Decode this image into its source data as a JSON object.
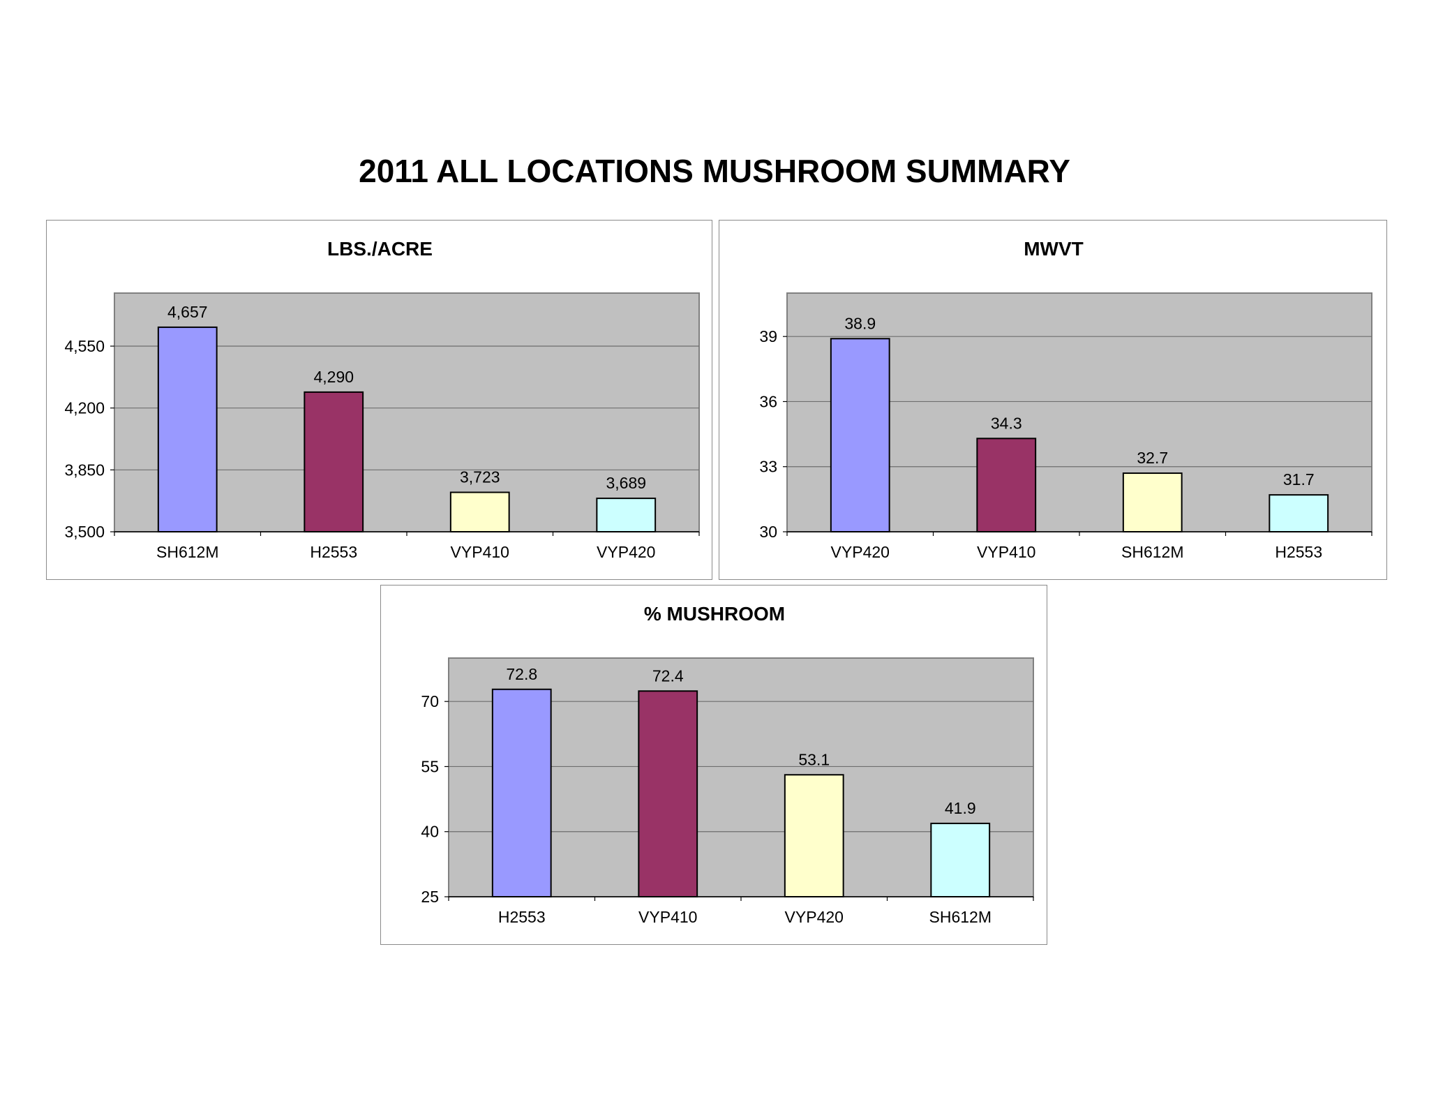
{
  "page": {
    "title": "2011 ALL LOCATIONS MUSHROOM SUMMARY"
  },
  "colors": {
    "plot_background": "#c0c0c0",
    "gridline": "#6e6e6e",
    "bar_outline": "#000000",
    "panel_border": "#8a8a8a"
  },
  "chart_data": [
    {
      "type": "bar",
      "title": "LBS./ACRE",
      "xlabel": "",
      "ylabel": "",
      "categories": [
        "SH612M",
        "H2553",
        "VYP410",
        "VYP420"
      ],
      "values": [
        4657,
        4290,
        3723,
        3689
      ],
      "value_labels": [
        "4,657",
        "4,290",
        "3,723",
        "3,689"
      ],
      "bar_colors": [
        "#9999ff",
        "#993366",
        "#ffffcc",
        "#ccffff"
      ],
      "ylim": [
        3500,
        4850
      ],
      "yticks": [
        3500,
        3850,
        4200,
        4550
      ],
      "ytick_labels": [
        "3,500",
        "3,850",
        "4,200",
        "4,550"
      ],
      "grid": true,
      "legend": "none"
    },
    {
      "type": "bar",
      "title": "MWVT",
      "xlabel": "",
      "ylabel": "",
      "categories": [
        "VYP420",
        "VYP410",
        "SH612M",
        "H2553"
      ],
      "values": [
        38.9,
        34.3,
        32.7,
        31.7
      ],
      "value_labels": [
        "38.9",
        "34.3",
        "32.7",
        "31.7"
      ],
      "bar_colors": [
        "#9999ff",
        "#993366",
        "#ffffcc",
        "#ccffff"
      ],
      "ylim": [
        30,
        41
      ],
      "yticks": [
        30,
        33,
        36,
        39
      ],
      "ytick_labels": [
        "30",
        "33",
        "36",
        "39"
      ],
      "grid": true,
      "legend": "none"
    },
    {
      "type": "bar",
      "title": "% MUSHROOM",
      "xlabel": "",
      "ylabel": "",
      "categories": [
        "H2553",
        "VYP410",
        "VYP420",
        "SH612M"
      ],
      "values": [
        72.8,
        72.4,
        53.1,
        41.9
      ],
      "value_labels": [
        "72.8",
        "72.4",
        "53.1",
        "41.9"
      ],
      "bar_colors": [
        "#9999ff",
        "#993366",
        "#ffffcc",
        "#ccffff"
      ],
      "ylim": [
        25,
        80
      ],
      "yticks": [
        25,
        40,
        55,
        70
      ],
      "ytick_labels": [
        "25",
        "40",
        "55",
        "70"
      ],
      "grid": true,
      "legend": "none"
    }
  ]
}
